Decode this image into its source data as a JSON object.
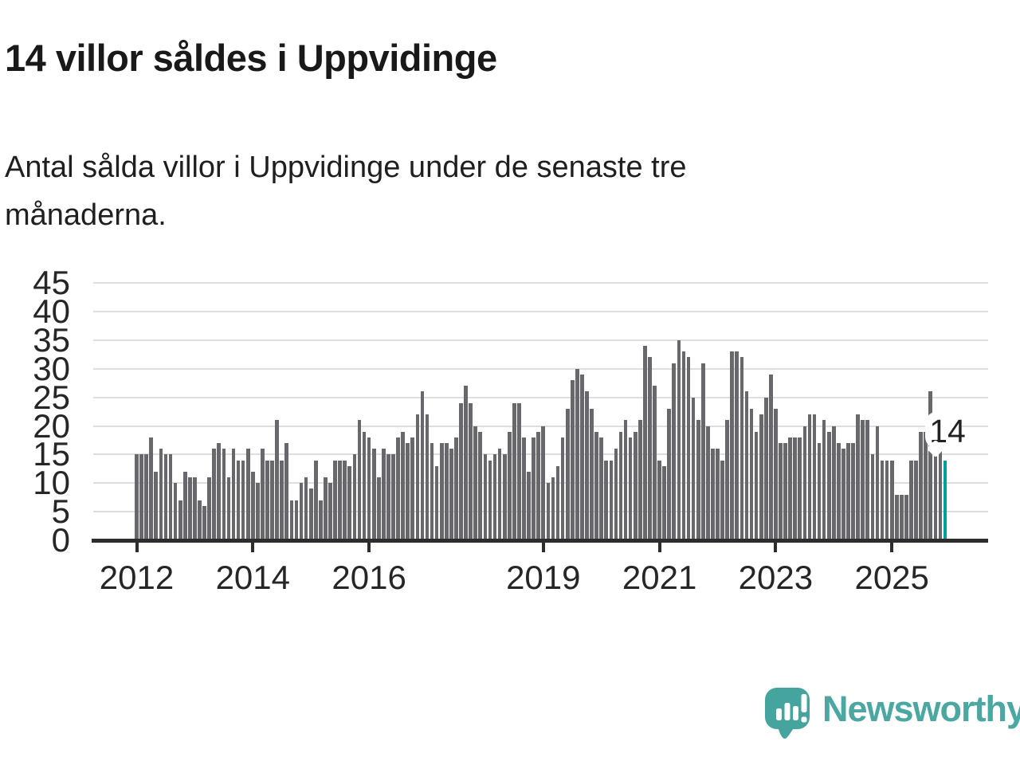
{
  "header": {
    "title": "14 villor såldes i Uppvidinge",
    "subtitle_line1": "Antal sålda villor i Uppvidinge under de senaste tre",
    "subtitle_line2": "månaderna."
  },
  "chart_data": {
    "type": "bar",
    "title": "14 villor såldes i Uppvidinge",
    "subtitle": "Antal sålda villor i Uppvidinge under de senaste tre månaderna.",
    "x_unit": "month",
    "x_start": "2012-01",
    "x_end": "2025-12",
    "values": [
      15,
      15,
      15,
      18,
      12,
      16,
      15,
      15,
      10,
      7,
      12,
      11,
      11,
      7,
      6,
      11,
      16,
      17,
      16,
      11,
      16,
      14,
      14,
      16,
      12,
      10,
      16,
      14,
      14,
      21,
      14,
      17,
      7,
      7,
      10,
      11,
      9,
      14,
      7,
      11,
      10,
      14,
      14,
      14,
      13,
      15,
      21,
      19,
      18,
      16,
      11,
      16,
      15,
      15,
      18,
      19,
      17,
      18,
      22,
      26,
      22,
      17,
      13,
      17,
      17,
      16,
      18,
      24,
      27,
      24,
      20,
      19,
      15,
      14,
      15,
      16,
      15,
      19,
      24,
      24,
      18,
      12,
      18,
      19,
      20,
      10,
      11,
      13,
      18,
      23,
      28,
      30,
      29,
      26,
      23,
      19,
      18,
      14,
      14,
      16,
      19,
      21,
      18,
      19,
      21,
      34,
      32,
      27,
      14,
      13,
      23,
      31,
      35,
      33,
      32,
      25,
      21,
      31,
      20,
      16,
      16,
      14,
      21,
      33,
      33,
      32,
      26,
      23,
      19,
      22,
      25,
      29,
      23,
      17,
      17,
      18,
      18,
      18,
      20,
      22,
      22,
      17,
      21,
      19,
      20,
      17,
      16,
      17,
      17,
      22,
      21,
      21,
      15,
      20,
      14,
      14,
      14,
      8,
      8,
      8,
      14,
      14,
      19,
      19,
      26,
      16,
      16,
      14
    ],
    "highlight_last": true,
    "annotation_label": "14",
    "ylim": [
      0,
      45
    ],
    "yticks": [
      0,
      5,
      10,
      15,
      20,
      25,
      30,
      35,
      40,
      45
    ],
    "xticks": [
      {
        "label": "2012",
        "month_index": 0
      },
      {
        "label": "2014",
        "month_index": 24
      },
      {
        "label": "2016",
        "month_index": 48
      },
      {
        "label": "2019",
        "month_index": 84
      },
      {
        "label": "2021",
        "month_index": 108
      },
      {
        "label": "2023",
        "month_index": 132
      },
      {
        "label": "2025",
        "month_index": 156
      }
    ],
    "grid": "horizontal",
    "legend": "none"
  },
  "colors": {
    "bar": "#67676c",
    "highlight": "#00a096",
    "gridline": "#dedede",
    "axis": "#2d2d2d",
    "text": "#1f1f1f",
    "brand_teal": "#4aa7a1"
  },
  "footer": {
    "brand": "Newsworthy"
  }
}
